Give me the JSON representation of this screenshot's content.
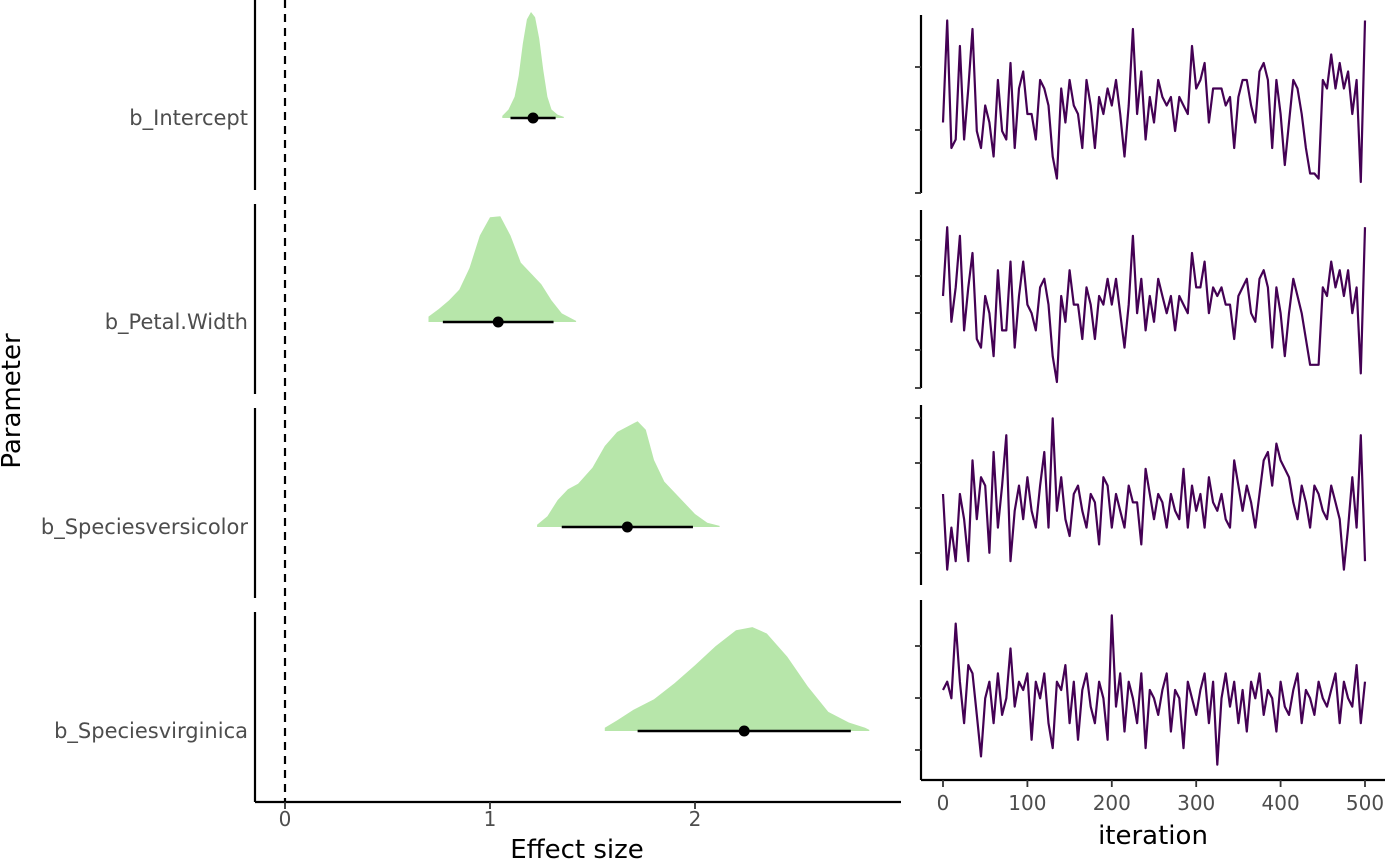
{
  "chart_data": [
    {
      "type": "area",
      "subtype": "posterior-density-with-interval",
      "xlabel": "Effect size",
      "ylabel": "Parameter",
      "xlim": [
        -0.15,
        2.9
      ],
      "xticks": [
        0,
        1,
        2
      ],
      "xtick_labels": [
        "0",
        "1",
        "2"
      ],
      "reference_line": 0,
      "grid": false,
      "colors": {
        "density": "#b7e6aa",
        "interval": "#000000",
        "point": "#000000",
        "axis": "#000000"
      },
      "parameters": [
        {
          "name": "b_Intercept",
          "label": "b_Intercept",
          "estimate": 1.21,
          "lower": 1.1,
          "upper": 1.32,
          "density": {
            "x": [
              1.06,
              1.09,
              1.12,
              1.14,
              1.16,
              1.18,
              1.2,
              1.22,
              1.24,
              1.26,
              1.28,
              1.3,
              1.33,
              1.36
            ],
            "y": [
              0.02,
              0.08,
              0.2,
              0.4,
              0.7,
              0.93,
              1.0,
              0.95,
              0.75,
              0.45,
              0.2,
              0.08,
              0.03,
              0.01
            ]
          }
        },
        {
          "name": "b_Petal.Width",
          "label": "b_Petal.Width",
          "estimate": 1.04,
          "lower": 0.77,
          "upper": 1.31,
          "density": {
            "x": [
              0.7,
              0.75,
              0.8,
              0.85,
              0.9,
              0.95,
              1.0,
              1.05,
              1.1,
              1.15,
              1.2,
              1.25,
              1.3,
              1.35,
              1.4,
              1.42
            ],
            "y": [
              0.05,
              0.12,
              0.2,
              0.3,
              0.5,
              0.8,
              0.97,
              0.98,
              0.8,
              0.55,
              0.45,
              0.35,
              0.2,
              0.08,
              0.03,
              0.01
            ]
          }
        },
        {
          "name": "b_Speciesversicolor",
          "label": "b_Speciesversicolor",
          "estimate": 1.67,
          "lower": 1.35,
          "upper": 1.99,
          "density": {
            "x": [
              1.23,
              1.28,
              1.33,
              1.38,
              1.43,
              1.5,
              1.56,
              1.62,
              1.67,
              1.72,
              1.76,
              1.8,
              1.85,
              1.9,
              1.95,
              2.0,
              2.06,
              2.12
            ],
            "y": [
              0.02,
              0.1,
              0.25,
              0.35,
              0.4,
              0.55,
              0.75,
              0.88,
              0.93,
              0.98,
              0.9,
              0.62,
              0.42,
              0.32,
              0.22,
              0.12,
              0.04,
              0.01
            ]
          }
        },
        {
          "name": "b_Speciesvirginica",
          "label": "b_Speciesvirginica",
          "estimate": 2.24,
          "lower": 1.72,
          "upper": 2.76,
          "density": {
            "x": [
              1.56,
              1.62,
              1.7,
              1.8,
              1.9,
              2.0,
              2.1,
              2.2,
              2.28,
              2.35,
              2.45,
              2.55,
              2.65,
              2.75,
              2.83,
              2.85
            ],
            "y": [
              0.03,
              0.1,
              0.2,
              0.3,
              0.45,
              0.62,
              0.8,
              0.95,
              0.98,
              0.92,
              0.7,
              0.42,
              0.18,
              0.08,
              0.03,
              0.01
            ]
          }
        }
      ]
    },
    {
      "type": "line",
      "subtype": "mcmc-trace",
      "xlabel": "iteration",
      "ylabel": "",
      "xlim": [
        0,
        500
      ],
      "xticks": [
        0,
        100,
        200,
        300,
        400,
        500
      ],
      "xtick_labels": [
        "0",
        "100",
        "200",
        "300",
        "400",
        "500"
      ],
      "grid": false,
      "colors": {
        "line": "#440154",
        "axis": "#000000"
      },
      "series": [
        {
          "parameter": "b_Intercept",
          "values": [
            0.35,
            0.95,
            0.2,
            0.25,
            0.8,
            0.25,
            0.55,
            0.9,
            0.3,
            0.2,
            0.45,
            0.35,
            0.15,
            0.6,
            0.3,
            0.25,
            0.7,
            0.2,
            0.55,
            0.65,
            0.4,
            0.4,
            0.25,
            0.6,
            0.55,
            0.45,
            0.15,
            0.02,
            0.55,
            0.35,
            0.6,
            0.45,
            0.4,
            0.2,
            0.6,
            0.45,
            0.2,
            0.5,
            0.4,
            0.55,
            0.45,
            0.6,
            0.4,
            0.15,
            0.45,
            0.9,
            0.4,
            0.65,
            0.25,
            0.5,
            0.35,
            0.6,
            0.5,
            0.45,
            0.5,
            0.3,
            0.5,
            0.45,
            0.4,
            0.8,
            0.55,
            0.6,
            0.7,
            0.35,
            0.55,
            0.55,
            0.55,
            0.45,
            0.5,
            0.2,
            0.5,
            0.6,
            0.6,
            0.45,
            0.35,
            0.65,
            0.7,
            0.6,
            0.2,
            0.6,
            0.4,
            0.1,
            0.35,
            0.6,
            0.55,
            0.4,
            0.2,
            0.05,
            0.05,
            0.02,
            0.6,
            0.55,
            0.75,
            0.55,
            0.7,
            0.55,
            0.65,
            0.4,
            0.6,
            0.0,
            0.95
          ]
        },
        {
          "parameter": "b_Petal.Width",
          "values": [
            0.5,
            0.9,
            0.35,
            0.55,
            0.85,
            0.3,
            0.55,
            0.75,
            0.25,
            0.2,
            0.5,
            0.4,
            0.15,
            0.65,
            0.3,
            0.3,
            0.7,
            0.2,
            0.5,
            0.7,
            0.45,
            0.4,
            0.3,
            0.55,
            0.6,
            0.45,
            0.15,
            0.0,
            0.5,
            0.35,
            0.65,
            0.45,
            0.45,
            0.25,
            0.55,
            0.45,
            0.25,
            0.5,
            0.45,
            0.6,
            0.45,
            0.6,
            0.4,
            0.2,
            0.45,
            0.85,
            0.4,
            0.6,
            0.3,
            0.5,
            0.35,
            0.6,
            0.5,
            0.4,
            0.5,
            0.3,
            0.5,
            0.45,
            0.4,
            0.75,
            0.55,
            0.55,
            0.7,
            0.4,
            0.55,
            0.5,
            0.55,
            0.45,
            0.45,
            0.25,
            0.5,
            0.55,
            0.6,
            0.4,
            0.35,
            0.6,
            0.65,
            0.55,
            0.2,
            0.55,
            0.4,
            0.15,
            0.4,
            0.6,
            0.5,
            0.4,
            0.25,
            0.1,
            0.1,
            0.1,
            0.55,
            0.5,
            0.7,
            0.55,
            0.65,
            0.5,
            0.65,
            0.4,
            0.55,
            0.05,
            0.9
          ]
        },
        {
          "parameter": "b_Speciesversicolor",
          "values": [
            0.5,
            0.05,
            0.3,
            0.1,
            0.5,
            0.35,
            0.1,
            0.7,
            0.35,
            0.6,
            0.55,
            0.15,
            0.75,
            0.3,
            0.55,
            0.85,
            0.1,
            0.4,
            0.55,
            0.35,
            0.6,
            0.4,
            0.3,
            0.55,
            0.75,
            0.3,
            0.95,
            0.4,
            0.6,
            0.35,
            0.25,
            0.5,
            0.55,
            0.4,
            0.3,
            0.5,
            0.45,
            0.2,
            0.6,
            0.55,
            0.3,
            0.5,
            0.4,
            0.3,
            0.55,
            0.45,
            0.45,
            0.2,
            0.65,
            0.5,
            0.35,
            0.5,
            0.45,
            0.3,
            0.5,
            0.4,
            0.35,
            0.65,
            0.3,
            0.55,
            0.4,
            0.5,
            0.3,
            0.6,
            0.45,
            0.4,
            0.5,
            0.35,
            0.3,
            0.7,
            0.55,
            0.4,
            0.55,
            0.45,
            0.3,
            0.5,
            0.7,
            0.75,
            0.55,
            0.8,
            0.7,
            0.65,
            0.6,
            0.45,
            0.35,
            0.55,
            0.45,
            0.3,
            0.55,
            0.5,
            0.4,
            0.35,
            0.55,
            0.45,
            0.35,
            0.05,
            0.3,
            0.6,
            0.3,
            0.85,
            0.1
          ]
        },
        {
          "parameter": "b_Speciesvirginica",
          "values": [
            0.5,
            0.55,
            0.45,
            0.9,
            0.55,
            0.3,
            0.65,
            0.6,
            0.35,
            0.1,
            0.45,
            0.55,
            0.3,
            0.6,
            0.35,
            0.45,
            0.75,
            0.4,
            0.55,
            0.5,
            0.6,
            0.2,
            0.55,
            0.45,
            0.6,
            0.3,
            0.15,
            0.55,
            0.5,
            0.65,
            0.3,
            0.55,
            0.2,
            0.5,
            0.6,
            0.4,
            0.3,
            0.55,
            0.45,
            0.2,
            0.95,
            0.4,
            0.6,
            0.25,
            0.55,
            0.45,
            0.3,
            0.6,
            0.15,
            0.5,
            0.45,
            0.35,
            0.5,
            0.6,
            0.25,
            0.5,
            0.45,
            0.15,
            0.55,
            0.45,
            0.35,
            0.5,
            0.6,
            0.3,
            0.55,
            0.05,
            0.45,
            0.6,
            0.4,
            0.55,
            0.3,
            0.5,
            0.25,
            0.55,
            0.45,
            0.6,
            0.35,
            0.5,
            0.45,
            0.25,
            0.55,
            0.4,
            0.35,
            0.5,
            0.6,
            0.3,
            0.5,
            0.45,
            0.35,
            0.55,
            0.45,
            0.4,
            0.5,
            0.6,
            0.3,
            0.55,
            0.45,
            0.4,
            0.65,
            0.3,
            0.55
          ]
        }
      ]
    }
  ]
}
